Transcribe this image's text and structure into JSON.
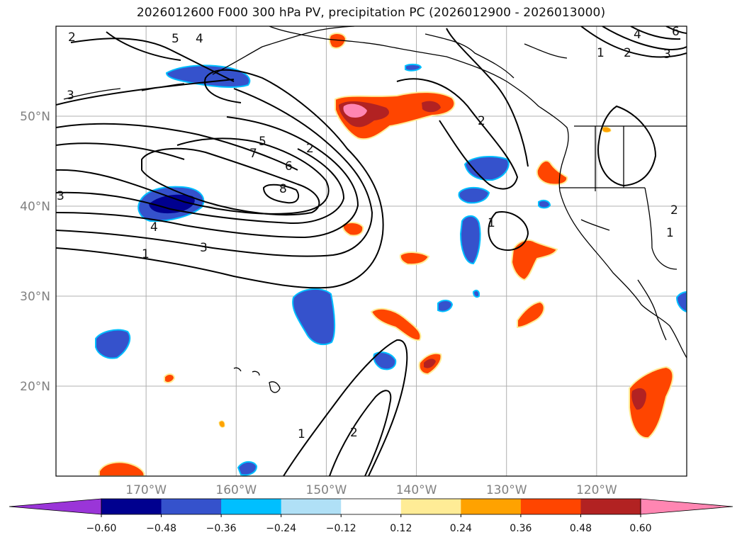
{
  "title": "2026012600 F000 300 hPa PV, precipitation PC (2026012900 - 2026013000)",
  "map": {
    "extent": {
      "lon_min": -180,
      "lon_max": -110,
      "lat_min": 10,
      "lat_max": 60
    },
    "lat_ticks": [
      {
        "value": 50,
        "label": "50°N"
      },
      {
        "value": 40,
        "label": "40°N"
      },
      {
        "value": 30,
        "label": "30°N"
      },
      {
        "value": 20,
        "label": "20°N"
      }
    ],
    "lon_ticks": [
      {
        "value": -170,
        "label": "170°W"
      },
      {
        "value": -160,
        "label": "160°W"
      },
      {
        "value": -150,
        "label": "150°W"
      },
      {
        "value": -140,
        "label": "140°W"
      },
      {
        "value": -130,
        "label": "130°W"
      },
      {
        "value": -120,
        "label": "120°W"
      }
    ],
    "contour_labels": [
      "1",
      "2",
      "3",
      "4",
      "5",
      "6",
      "7",
      "8"
    ],
    "grid": true
  },
  "colorbar": {
    "ticks": [
      "−0.60",
      "−0.48",
      "−0.36",
      "−0.24",
      "−0.12",
      "0.12",
      "0.24",
      "0.36",
      "0.48",
      "0.60"
    ],
    "colors": [
      "#9a35d8",
      "#00008f",
      "#3552cc",
      "#00bfff",
      "#b0e0f6",
      "#ffffff",
      "#ffec96",
      "#ffa200",
      "#ff4500",
      "#b22222",
      "#ff86b2"
    ]
  }
}
